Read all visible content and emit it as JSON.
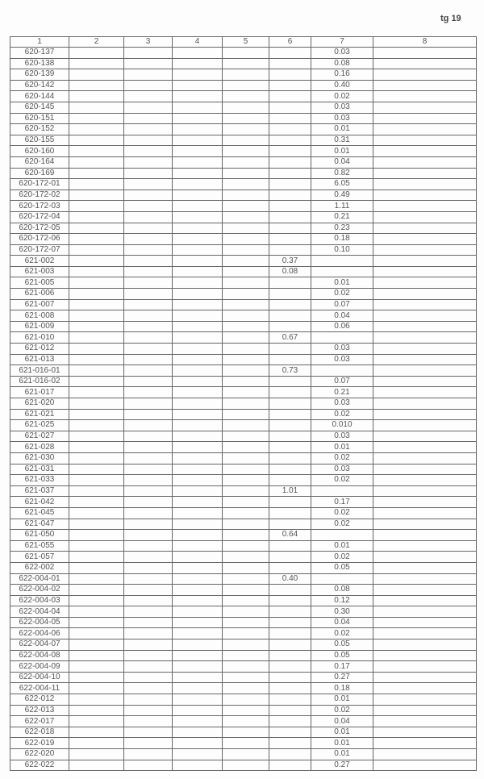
{
  "page_label": "tg 19",
  "columns": [
    "1",
    "2",
    "3",
    "4",
    "5",
    "6",
    "7",
    "8"
  ],
  "rows": [
    [
      "620-137",
      "",
      "0.03"
    ],
    [
      "620-138",
      "",
      "0.08"
    ],
    [
      "620-139",
      "",
      "0.16"
    ],
    [
      "620-142",
      "",
      "0.40"
    ],
    [
      "620-144",
      "",
      "0.02"
    ],
    [
      "620-145",
      "",
      "0.03"
    ],
    [
      "620-151",
      "",
      "0.03"
    ],
    [
      "620-152",
      "",
      "0.01"
    ],
    [
      "620-155",
      "",
      "0.31"
    ],
    [
      "620-160",
      "",
      "0.01"
    ],
    [
      "620-164",
      "",
      "0.04"
    ],
    [
      "620-169",
      "",
      "0.82"
    ],
    [
      "620-172-01",
      "",
      "6.05"
    ],
    [
      "620-172-02",
      "",
      "0.49"
    ],
    [
      "620-172-03",
      "",
      "1.11"
    ],
    [
      "620-172-04",
      "",
      "0.21"
    ],
    [
      "620-172-05",
      "",
      "0.23"
    ],
    [
      "620-172-06",
      "",
      "0.18"
    ],
    [
      "620-172-07",
      "",
      "0.10"
    ],
    [
      "621-002",
      "0.37",
      ""
    ],
    [
      "621-003",
      "0.08",
      ""
    ],
    [
      "621-005",
      "",
      "0.01"
    ],
    [
      "621-006",
      "",
      "0.02"
    ],
    [
      "621-007",
      "",
      "0.07"
    ],
    [
      "621-008",
      "",
      "0.04"
    ],
    [
      "621-009",
      "",
      "0.06"
    ],
    [
      "621-010",
      "0.67",
      ""
    ],
    [
      "621-012",
      "",
      "0.03"
    ],
    [
      "621-013",
      "",
      "0.03"
    ],
    [
      "621-016-01",
      "0.73",
      ""
    ],
    [
      "621-016-02",
      "",
      "0.07"
    ],
    [
      "621-017",
      "",
      "0.21"
    ],
    [
      "621-020",
      "",
      "0.03"
    ],
    [
      "621-021",
      "",
      "0.02"
    ],
    [
      "621-025",
      "",
      "0.010"
    ],
    [
      "621-027",
      "",
      "0.03"
    ],
    [
      "621-028",
      "",
      "0.01"
    ],
    [
      "621-030",
      "",
      "0.02"
    ],
    [
      "621-031",
      "",
      "0.03"
    ],
    [
      "621-033",
      "",
      "0.02"
    ],
    [
      "621-037",
      "1.01",
      ""
    ],
    [
      "621-042",
      "",
      "0.17"
    ],
    [
      "621-045",
      "",
      "0.02"
    ],
    [
      "621-047",
      "",
      "0.02"
    ],
    [
      "621-050",
      "0.64",
      ""
    ],
    [
      "621-055",
      "",
      "0.01"
    ],
    [
      "621-057",
      "",
      "0.02"
    ],
    [
      "622-002",
      "",
      "0.05"
    ],
    [
      "622-004-01",
      "0.40",
      ""
    ],
    [
      "622-004-02",
      "",
      "0.08"
    ],
    [
      "622-004-03",
      "",
      "0.12"
    ],
    [
      "622-004-04",
      "",
      "0.30"
    ],
    [
      "622-004-05",
      "",
      "0.04"
    ],
    [
      "622-004-06",
      "",
      "0.02"
    ],
    [
      "622-004-07",
      "",
      "0.05"
    ],
    [
      "622-004-08",
      "",
      "0.05"
    ],
    [
      "622-004-09",
      "",
      "0.17"
    ],
    [
      "622-004-10",
      "",
      "0.27"
    ],
    [
      "622-004-11",
      "",
      "0.18"
    ],
    [
      "622-012",
      "",
      "0.01"
    ],
    [
      "622-013",
      "",
      "0.02"
    ],
    [
      "622-017",
      "",
      "0.04"
    ],
    [
      "622-018",
      "",
      "0.01"
    ],
    [
      "622-019",
      "",
      "0.01"
    ],
    [
      "622-020",
      "",
      "0.01"
    ],
    [
      "622-022",
      "",
      "0.27"
    ]
  ]
}
